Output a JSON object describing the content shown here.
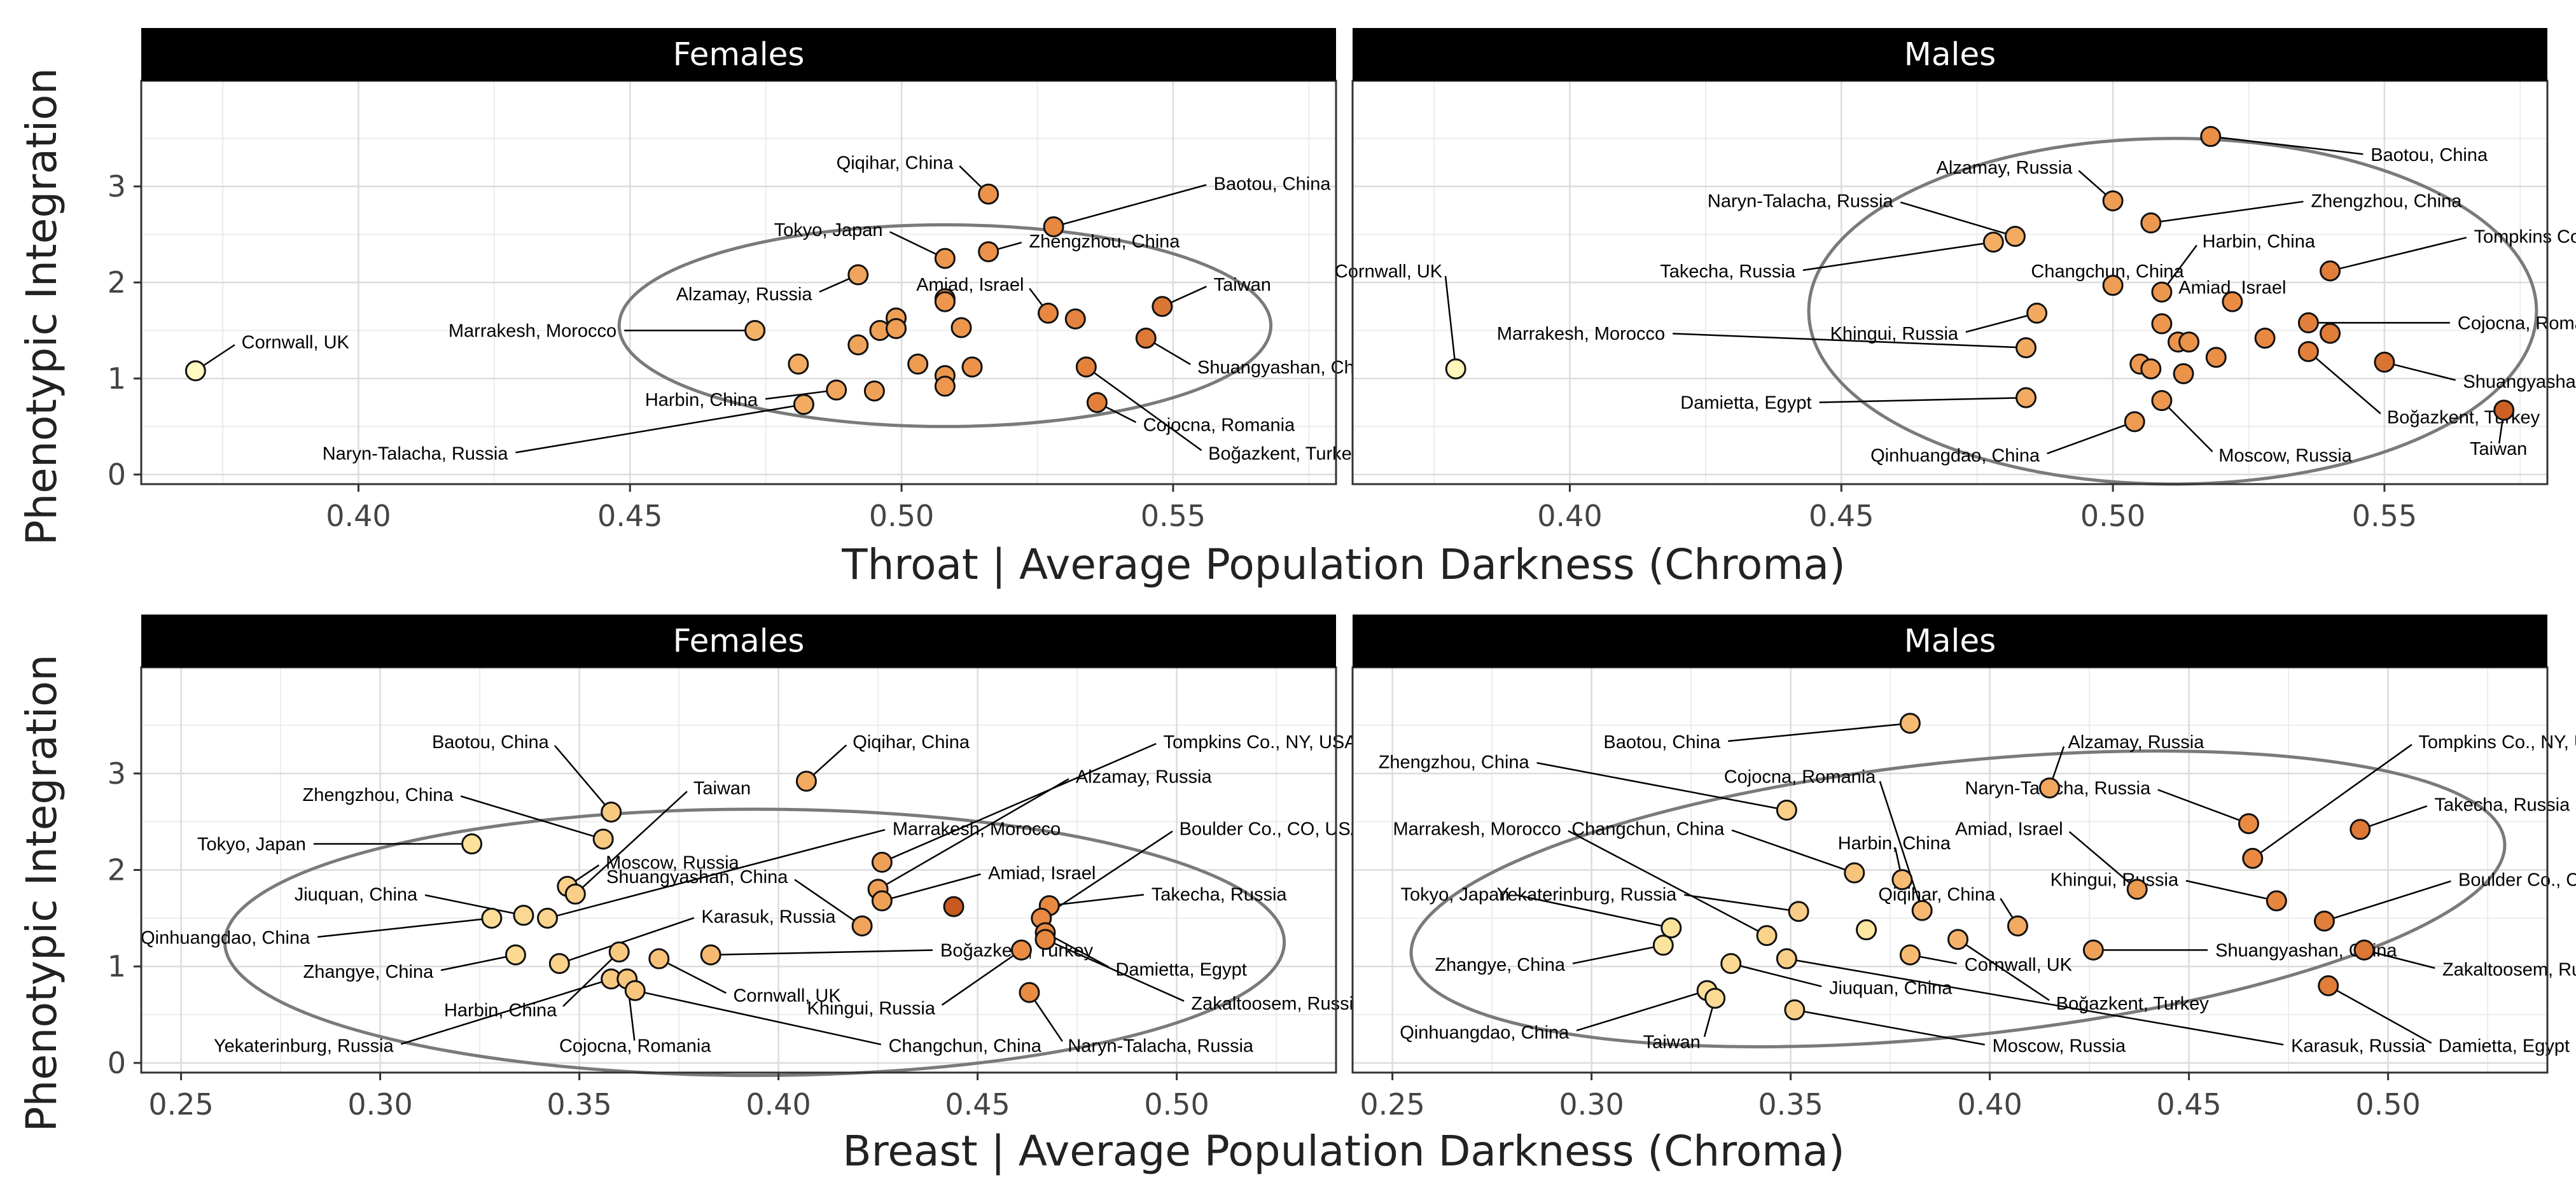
{
  "figure": {
    "y_axis_label": "Phenotypic Integration",
    "row_x_axis_labels": [
      "Throat | Average Population Darkness (Chroma)",
      "Breast | Average Population Darkness (Chroma)"
    ]
  },
  "colors": {
    "strip_background": "#000000",
    "strip_text": "#ffffff",
    "grid": "#dcdcdc",
    "ellipse": "#7a7a7a",
    "point_outline": "#111111",
    "gradient": [
      "#ffffc8",
      "#fde6a0",
      "#f5b46a",
      "#e98a42",
      "#c85a20"
    ]
  },
  "chart_data": [
    {
      "type": "scatter",
      "panel": "Females",
      "xlabel": "Throat | Average Population Darkness (Chroma)",
      "ylabel": "Phenotypic Integration",
      "xlim": [
        0.36,
        0.58
      ],
      "ylim": [
        -0.1,
        4.1
      ],
      "x_ticks": [
        "0.40",
        "0.45",
        "0.50",
        "0.55"
      ],
      "y_ticks": [
        "0",
        "1",
        "2",
        "3"
      ],
      "grid": true,
      "ellipse": {
        "cx": 0.508,
        "cy": 1.55,
        "rx": 0.06,
        "ry": 1.05,
        "angle_deg": 0
      },
      "points": [
        {
          "x": 0.37,
          "y": 1.08,
          "label": "Cornwall, UK",
          "lx": 0.378,
          "ly": 1.38
        },
        {
          "x": 0.473,
          "y": 1.5,
          "label": "Marrakesh, Morocco",
          "lx": 0.448,
          "ly": 1.5
        },
        {
          "x": 0.492,
          "y": 2.08,
          "label": "Alzamay, Russia",
          "lx": 0.484,
          "ly": 1.88
        },
        {
          "x": 0.508,
          "y": 2.25,
          "label": "Tokyo, Japan",
          "lx": 0.497,
          "ly": 2.55
        },
        {
          "x": 0.516,
          "y": 2.92,
          "label": "Qiqihar, China",
          "lx": 0.51,
          "ly": 3.25
        },
        {
          "x": 0.528,
          "y": 2.58,
          "label": "Baotou, China",
          "lx": 0.557,
          "ly": 3.03
        },
        {
          "x": 0.516,
          "y": 2.32,
          "label": "Zhengzhou, China",
          "lx": 0.523,
          "ly": 2.43
        },
        {
          "x": 0.527,
          "y": 1.68,
          "label": "Amiad, Israel",
          "lx": 0.523,
          "ly": 1.98
        },
        {
          "x": 0.548,
          "y": 1.75,
          "label": "Taiwan",
          "lx": 0.557,
          "ly": 1.98
        },
        {
          "x": 0.545,
          "y": 1.42,
          "label": "Shuangyashan, China",
          "lx": 0.554,
          "ly": 1.12
        },
        {
          "x": 0.536,
          "y": 0.75,
          "label": "Cojocna, Romania",
          "lx": 0.544,
          "ly": 0.52
        },
        {
          "x": 0.534,
          "y": 1.12,
          "label": "Boğazkent, Turkey",
          "lx": 0.556,
          "ly": 0.22
        },
        {
          "x": 0.488,
          "y": 0.88,
          "label": "Harbin, China",
          "lx": 0.474,
          "ly": 0.78
        },
        {
          "x": 0.482,
          "y": 0.73,
          "label": "Naryn-Talacha, Russia",
          "lx": 0.428,
          "ly": 0.22
        },
        {
          "x": 0.481,
          "y": 1.15,
          "label": ""
        },
        {
          "x": 0.492,
          "y": 1.35,
          "label": ""
        },
        {
          "x": 0.495,
          "y": 0.87,
          "label": ""
        },
        {
          "x": 0.496,
          "y": 1.5,
          "label": ""
        },
        {
          "x": 0.499,
          "y": 1.63,
          "label": ""
        },
        {
          "x": 0.499,
          "y": 1.52,
          "label": ""
        },
        {
          "x": 0.503,
          "y": 1.15,
          "label": ""
        },
        {
          "x": 0.508,
          "y": 1.83,
          "label": ""
        },
        {
          "x": 0.508,
          "y": 1.8,
          "label": ""
        },
        {
          "x": 0.508,
          "y": 1.03,
          "label": ""
        },
        {
          "x": 0.508,
          "y": 0.92,
          "label": ""
        },
        {
          "x": 0.511,
          "y": 1.53,
          "label": ""
        },
        {
          "x": 0.513,
          "y": 1.12,
          "label": ""
        },
        {
          "x": 0.532,
          "y": 1.62,
          "label": ""
        }
      ]
    },
    {
      "type": "scatter",
      "panel": "Males",
      "xlabel": "Throat | Average Population Darkness (Chroma)",
      "ylabel": "Phenotypic Integration",
      "xlim": [
        0.36,
        0.58
      ],
      "ylim": [
        -0.1,
        4.1
      ],
      "x_ticks": [
        "0.40",
        "0.45",
        "0.50",
        "0.55"
      ],
      "y_ticks": [
        "0",
        "1",
        "2",
        "3"
      ],
      "grid": true,
      "ellipse": {
        "cx": 0.511,
        "cy": 1.7,
        "rx": 0.067,
        "ry": 1.8,
        "angle_deg": 0
      },
      "points": [
        {
          "x": 0.379,
          "y": 1.1,
          "label": "Cornwall, UK",
          "lx": 0.377,
          "ly": 2.12
        },
        {
          "x": 0.518,
          "y": 3.52,
          "label": "Baotou, China",
          "lx": 0.547,
          "ly": 3.33
        },
        {
          "x": 0.5,
          "y": 2.85,
          "label": "Alzamay, Russia",
          "lx": 0.493,
          "ly": 3.2
        },
        {
          "x": 0.482,
          "y": 2.48,
          "label": "Naryn-Talacha, Russia",
          "lx": 0.46,
          "ly": 2.85
        },
        {
          "x": 0.507,
          "y": 2.62,
          "label": "Zhengzhou, China",
          "lx": 0.536,
          "ly": 2.85
        },
        {
          "x": 0.478,
          "y": 2.42,
          "label": "Takecha, Russia",
          "lx": 0.442,
          "ly": 2.12
        },
        {
          "x": 0.509,
          "y": 1.9,
          "label": "Harbin, China",
          "lx": 0.516,
          "ly": 2.43
        },
        {
          "x": 0.5,
          "y": 1.97,
          "label": "Changchun, China",
          "lx": 0.499,
          "ly": 2.12
        },
        {
          "x": 0.54,
          "y": 2.12,
          "label": "Tompkins Co., NY, USA",
          "lx": 0.566,
          "ly": 2.48
        },
        {
          "x": 0.522,
          "y": 1.8,
          "label": "Amiad, Israel",
          "lx": 0.522,
          "ly": 1.95
        },
        {
          "x": 0.536,
          "y": 1.58,
          "label": "Cojocna, Romania",
          "lx": 0.563,
          "ly": 1.58
        },
        {
          "x": 0.486,
          "y": 1.68,
          "label": "Khingui, Russia",
          "lx": 0.472,
          "ly": 1.47
        },
        {
          "x": 0.484,
          "y": 1.32,
          "label": "Marrakesh, Morocco",
          "lx": 0.418,
          "ly": 1.47
        },
        {
          "x": 0.55,
          "y": 1.17,
          "label": "Shuangyashan, China",
          "lx": 0.564,
          "ly": 0.97
        },
        {
          "x": 0.536,
          "y": 1.28,
          "label": "Boğazkent, Turkey",
          "lx": 0.55,
          "ly": 0.6
        },
        {
          "x": 0.484,
          "y": 0.8,
          "label": "Damietta, Egypt",
          "lx": 0.445,
          "ly": 0.75
        },
        {
          "x": 0.509,
          "y": 0.77,
          "label": "Moscow, Russia",
          "lx": 0.519,
          "ly": 0.2
        },
        {
          "x": 0.504,
          "y": 0.55,
          "label": "Qinhuangdao, China",
          "lx": 0.487,
          "ly": 0.2
        },
        {
          "x": 0.572,
          "y": 0.67,
          "label": "Taiwan",
          "lx": 0.571,
          "ly": 0.27
        },
        {
          "x": 0.509,
          "y": 1.57,
          "label": ""
        },
        {
          "x": 0.512,
          "y": 1.38,
          "label": ""
        },
        {
          "x": 0.514,
          "y": 1.38,
          "label": ""
        },
        {
          "x": 0.505,
          "y": 1.15,
          "label": ""
        },
        {
          "x": 0.507,
          "y": 1.1,
          "label": ""
        },
        {
          "x": 0.513,
          "y": 1.05,
          "label": ""
        },
        {
          "x": 0.519,
          "y": 1.22,
          "label": ""
        },
        {
          "x": 0.528,
          "y": 1.42,
          "label": ""
        },
        {
          "x": 0.54,
          "y": 1.47,
          "label": ""
        }
      ]
    },
    {
      "type": "scatter",
      "panel": "Females",
      "xlabel": "Breast | Average Population Darkness (Chroma)",
      "ylabel": "Phenotypic Integration",
      "xlim": [
        0.24,
        0.54
      ],
      "ylim": [
        -0.1,
        4.1
      ],
      "x_ticks": [
        "0.25",
        "0.30",
        "0.35",
        "0.40",
        "0.45",
        "0.50"
      ],
      "y_ticks": [
        "0",
        "1",
        "2",
        "3"
      ],
      "grid": true,
      "ellipse": {
        "cx": 0.394,
        "cy": 1.25,
        "rx": 0.133,
        "ry": 1.38,
        "angle_deg": 0
      },
      "points": [
        {
          "x": 0.358,
          "y": 2.6,
          "label": "Baotou, China",
          "lx": 0.343,
          "ly": 3.33
        },
        {
          "x": 0.356,
          "y": 2.32,
          "label": "Zhengzhou, China",
          "lx": 0.319,
          "ly": 2.78
        },
        {
          "x": 0.323,
          "y": 2.27,
          "label": "Tokyo, Japan",
          "lx": 0.282,
          "ly": 2.27
        },
        {
          "x": 0.347,
          "y": 1.83,
          "label": "Moscow, Russia",
          "lx": 0.356,
          "ly": 2.08
        },
        {
          "x": 0.349,
          "y": 1.75,
          "label": "Taiwan",
          "lx": 0.378,
          "ly": 2.85
        },
        {
          "x": 0.336,
          "y": 1.53,
          "label": "Jiuquan, China",
          "lx": 0.31,
          "ly": 1.75
        },
        {
          "x": 0.342,
          "y": 1.5,
          "label": "Marrakesh, Morocco",
          "lx": 0.428,
          "ly": 2.43
        },
        {
          "x": 0.328,
          "y": 1.5,
          "label": "Qinhuangdao, China",
          "lx": 0.283,
          "ly": 1.3
        },
        {
          "x": 0.334,
          "y": 1.12,
          "label": "Zhangye, China",
          "lx": 0.314,
          "ly": 0.95
        },
        {
          "x": 0.345,
          "y": 1.03,
          "label": "Karasuk, Russia",
          "lx": 0.38,
          "ly": 1.52
        },
        {
          "x": 0.36,
          "y": 1.15,
          "label": "Harbin, China",
          "lx": 0.345,
          "ly": 0.55
        },
        {
          "x": 0.358,
          "y": 0.87,
          "label": "Yekaterinburg, Russia",
          "lx": 0.304,
          "ly": 0.18
        },
        {
          "x": 0.362,
          "y": 0.87,
          "label": "Cojocna, Romania",
          "lx": 0.364,
          "ly": 0.18
        },
        {
          "x": 0.364,
          "y": 0.75,
          "label": "Changchun, China",
          "lx": 0.427,
          "ly": 0.18
        },
        {
          "x": 0.37,
          "y": 1.08,
          "label": "Cornwall, UK",
          "lx": 0.388,
          "ly": 0.7
        },
        {
          "x": 0.383,
          "y": 1.12,
          "label": "Boğazkent, Turkey",
          "lx": 0.44,
          "ly": 1.17
        },
        {
          "x": 0.407,
          "y": 2.92,
          "label": "Qiqihar, China",
          "lx": 0.418,
          "ly": 3.33
        },
        {
          "x": 0.426,
          "y": 2.08,
          "label": "Tompkins Co., NY, USA",
          "lx": 0.496,
          "ly": 3.33
        },
        {
          "x": 0.425,
          "y": 1.8,
          "label": "Alzamay, Russia",
          "lx": 0.474,
          "ly": 2.97
        },
        {
          "x": 0.421,
          "y": 1.42,
          "label": "Shuangyashan, China",
          "lx": 0.403,
          "ly": 1.93
        },
        {
          "x": 0.426,
          "y": 1.68,
          "label": "Amiad, Israel",
          "lx": 0.452,
          "ly": 1.97
        },
        {
          "x": 0.444,
          "y": 1.62,
          "label": "",
          "color_rank": 4
        },
        {
          "x": 0.468,
          "y": 1.63,
          "label": "Takecha, Russia",
          "lx": 0.493,
          "ly": 1.75
        },
        {
          "x": 0.466,
          "y": 1.5,
          "label": "Boulder Co., CO, USA",
          "lx": 0.5,
          "ly": 2.43
        },
        {
          "x": 0.467,
          "y": 1.35,
          "label": "Damietta, Egypt",
          "lx": 0.484,
          "ly": 0.97
        },
        {
          "x": 0.461,
          "y": 1.17,
          "label": "Khingui, Russia",
          "lx": 0.44,
          "ly": 0.57
        },
        {
          "x": 0.467,
          "y": 1.28,
          "label": "Zakaltoosem, Russia",
          "lx": 0.503,
          "ly": 0.62
        },
        {
          "x": 0.463,
          "y": 0.73,
          "label": "Naryn-Talacha, Russia",
          "lx": 0.472,
          "ly": 0.18
        }
      ]
    },
    {
      "type": "scatter",
      "panel": "Males",
      "xlabel": "Breast | Average Population Darkness (Chroma)",
      "ylabel": "Phenotypic Integration",
      "xlim": [
        0.24,
        0.54
      ],
      "ylim": [
        -0.1,
        4.1
      ],
      "x_ticks": [
        "0.25",
        "0.30",
        "0.35",
        "0.40",
        "0.45",
        "0.50"
      ],
      "y_ticks": [
        "0",
        "1",
        "2",
        "3"
      ],
      "grid": true,
      "ellipse": {
        "cx": 0.392,
        "cy": 1.7,
        "rx": 0.138,
        "ry": 1.42,
        "angle_deg": -6
      },
      "points": [
        {
          "x": 0.38,
          "y": 3.52,
          "label": "Baotou, China",
          "lx": 0.333,
          "ly": 3.33
        },
        {
          "x": 0.349,
          "y": 2.62,
          "label": "Zhengzhou, China",
          "lx": 0.285,
          "ly": 3.12
        },
        {
          "x": 0.415,
          "y": 2.85,
          "label": "Alzamay, Russia",
          "lx": 0.419,
          "ly": 3.33
        },
        {
          "x": 0.465,
          "y": 2.48,
          "label": "Naryn-Talacha, Russia",
          "lx": 0.441,
          "ly": 2.85
        },
        {
          "x": 0.493,
          "y": 2.42,
          "label": "Takecha, Russia",
          "lx": 0.511,
          "ly": 2.68
        },
        {
          "x": 0.466,
          "y": 2.12,
          "label": "Tompkins Co., NY, USA",
          "lx": 0.507,
          "ly": 3.33
        },
        {
          "x": 0.383,
          "y": 1.58,
          "label": "Cojocna, Romania",
          "lx": 0.372,
          "ly": 2.97
        },
        {
          "x": 0.378,
          "y": 1.9,
          "label": "Harbin, China",
          "lx": 0.376,
          "ly": 2.28
        },
        {
          "x": 0.366,
          "y": 1.97,
          "label": "Changchun, China",
          "lx": 0.334,
          "ly": 2.43
        },
        {
          "x": 0.344,
          "y": 1.32,
          "label": "Marrakesh, Morocco",
          "lx": 0.293,
          "ly": 2.43
        },
        {
          "x": 0.437,
          "y": 1.8,
          "label": "Amiad, Israel",
          "lx": 0.419,
          "ly": 2.43
        },
        {
          "x": 0.472,
          "y": 1.68,
          "label": "Khingui, Russia",
          "lx": 0.448,
          "ly": 1.9
        },
        {
          "x": 0.484,
          "y": 1.47,
          "label": "Boulder Co., CO, USA",
          "lx": 0.517,
          "ly": 1.9
        },
        {
          "x": 0.32,
          "y": 1.4,
          "label": "Tokyo, Japan",
          "lx": 0.28,
          "ly": 1.75
        },
        {
          "x": 0.352,
          "y": 1.57,
          "label": "Yekaterinburg, Russia",
          "lx": 0.322,
          "ly": 1.75
        },
        {
          "x": 0.407,
          "y": 1.42,
          "label": "Qiqihar, China",
          "lx": 0.402,
          "ly": 1.75
        },
        {
          "x": 0.426,
          "y": 1.17,
          "label": "Shuangyashan, China",
          "lx": 0.456,
          "ly": 1.17
        },
        {
          "x": 0.318,
          "y": 1.22,
          "label": "Zhangye, China",
          "lx": 0.294,
          "ly": 1.02
        },
        {
          "x": 0.38,
          "y": 1.12,
          "label": "Cornwall, UK",
          "lx": 0.393,
          "ly": 1.02
        },
        {
          "x": 0.392,
          "y": 1.28,
          "label": "Boğazkent, Turkey",
          "lx": 0.416,
          "ly": 0.62
        },
        {
          "x": 0.335,
          "y": 1.03,
          "label": "Jiuquan, China",
          "lx": 0.359,
          "ly": 0.78
        },
        {
          "x": 0.349,
          "y": 1.08,
          "label": "Karasuk, Russia",
          "lx": 0.475,
          "ly": 0.18
        },
        {
          "x": 0.494,
          "y": 1.17,
          "label": "Zakaltoosem, Russia",
          "lx": 0.513,
          "ly": 0.97
        },
        {
          "x": 0.485,
          "y": 0.8,
          "label": "Damietta, Egypt",
          "lx": 0.512,
          "ly": 0.18
        },
        {
          "x": 0.351,
          "y": 0.55,
          "label": "Moscow, Russia",
          "lx": 0.4,
          "ly": 0.18
        },
        {
          "x": 0.329,
          "y": 0.75,
          "label": "Qinhuangdao, China",
          "lx": 0.295,
          "ly": 0.32
        },
        {
          "x": 0.331,
          "y": 0.67,
          "label": "Taiwan",
          "lx": 0.328,
          "ly": 0.22
        },
        {
          "x": 0.369,
          "y": 1.38,
          "label": "",
          "color_rank": 1
        }
      ]
    }
  ]
}
